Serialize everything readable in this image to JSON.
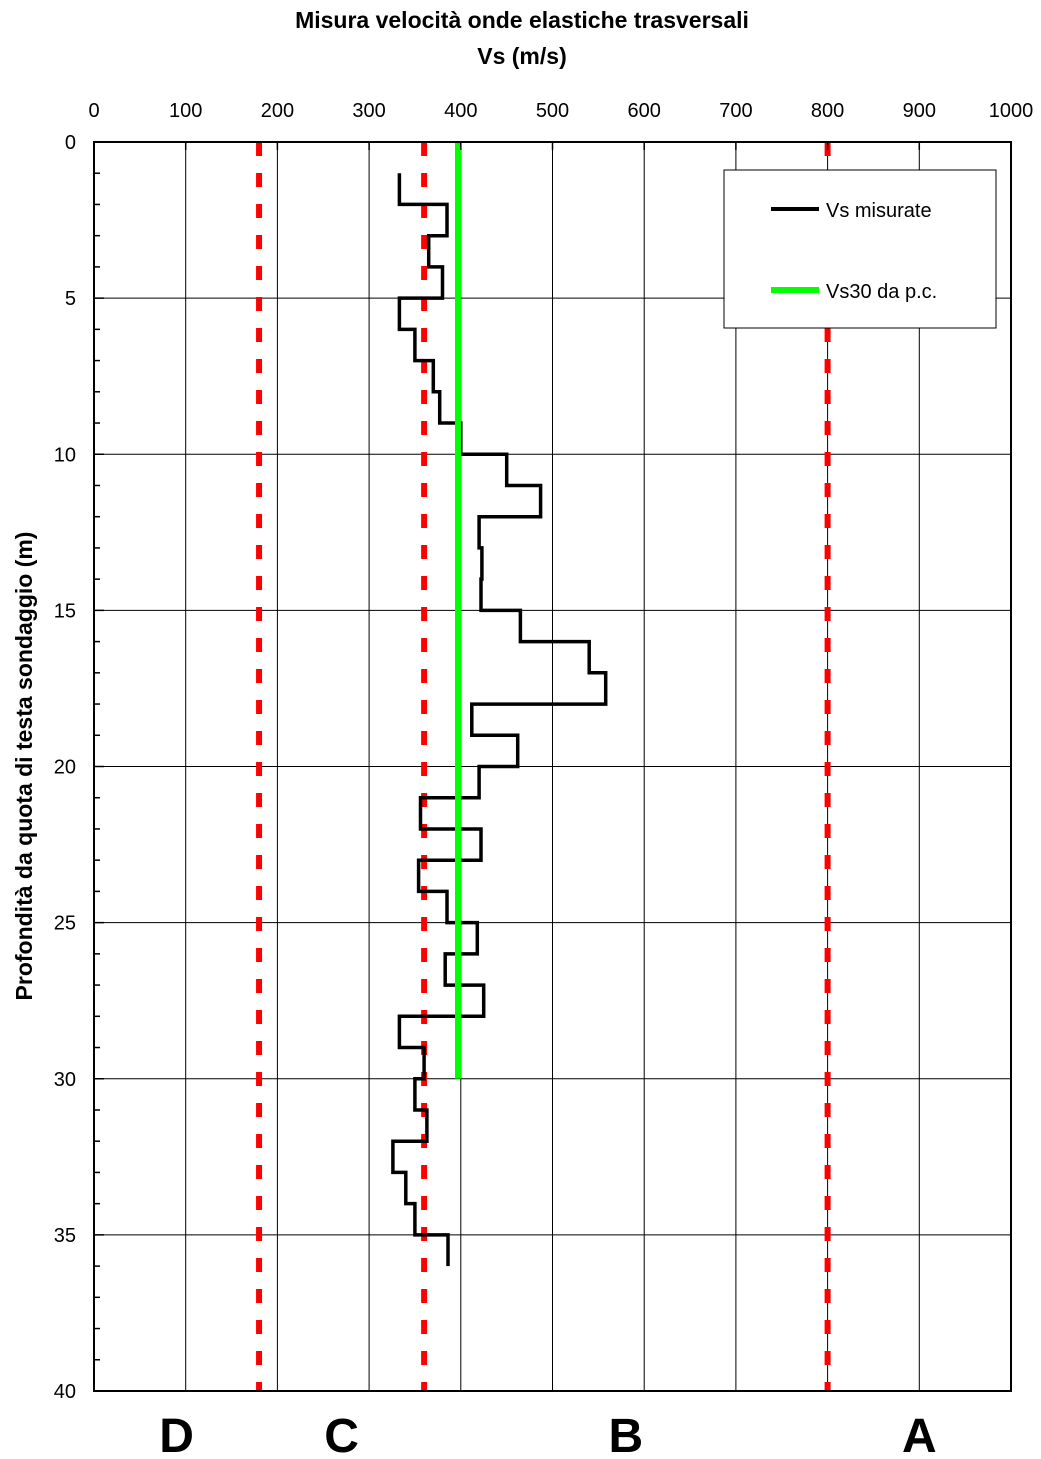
{
  "chart_data": {
    "type": "line",
    "title": "Misura velocità onde elastiche trasversali",
    "subtitle": "Vs (m/s)",
    "xlabel": "Vs (m/s)",
    "ylabel": "Profondità da quota di testa sondaggio (m)",
    "xlim": [
      0,
      1000
    ],
    "ylim": [
      0,
      40
    ],
    "y_inverted": true,
    "x_axis_position": "top",
    "x_ticks": [
      0,
      100,
      200,
      300,
      400,
      500,
      600,
      700,
      800,
      900,
      1000
    ],
    "y_ticks": [
      0,
      5,
      10,
      15,
      20,
      25,
      30,
      35,
      40
    ],
    "grid": true,
    "legend_placement": "top-right",
    "series": [
      {
        "name": "Vs misurate",
        "color": "#000000",
        "style": "step",
        "points": [
          {
            "vs": 333,
            "depth": 1
          },
          {
            "vs": 333,
            "depth": 2
          },
          {
            "vs": 385,
            "depth": 2
          },
          {
            "vs": 385,
            "depth": 3
          },
          {
            "vs": 365,
            "depth": 3
          },
          {
            "vs": 365,
            "depth": 4
          },
          {
            "vs": 380,
            "depth": 4
          },
          {
            "vs": 380,
            "depth": 5
          },
          {
            "vs": 333,
            "depth": 5
          },
          {
            "vs": 333,
            "depth": 6
          },
          {
            "vs": 350,
            "depth": 6
          },
          {
            "vs": 350,
            "depth": 7
          },
          {
            "vs": 370,
            "depth": 7
          },
          {
            "vs": 370,
            "depth": 8
          },
          {
            "vs": 377,
            "depth": 8
          },
          {
            "vs": 377,
            "depth": 9
          },
          {
            "vs": 400,
            "depth": 9
          },
          {
            "vs": 400,
            "depth": 10
          },
          {
            "vs": 450,
            "depth": 10
          },
          {
            "vs": 450,
            "depth": 11
          },
          {
            "vs": 487,
            "depth": 11
          },
          {
            "vs": 487,
            "depth": 12
          },
          {
            "vs": 420,
            "depth": 12
          },
          {
            "vs": 420,
            "depth": 13
          },
          {
            "vs": 423,
            "depth": 13
          },
          {
            "vs": 423,
            "depth": 14
          },
          {
            "vs": 422,
            "depth": 14
          },
          {
            "vs": 422,
            "depth": 15
          },
          {
            "vs": 465,
            "depth": 15
          },
          {
            "vs": 465,
            "depth": 16
          },
          {
            "vs": 540,
            "depth": 16
          },
          {
            "vs": 540,
            "depth": 17
          },
          {
            "vs": 558,
            "depth": 17
          },
          {
            "vs": 558,
            "depth": 18
          },
          {
            "vs": 412,
            "depth": 18
          },
          {
            "vs": 412,
            "depth": 19
          },
          {
            "vs": 462,
            "depth": 19
          },
          {
            "vs": 462,
            "depth": 20
          },
          {
            "vs": 420,
            "depth": 20
          },
          {
            "vs": 420,
            "depth": 21
          },
          {
            "vs": 356,
            "depth": 21
          },
          {
            "vs": 356,
            "depth": 22
          },
          {
            "vs": 422,
            "depth": 22
          },
          {
            "vs": 422,
            "depth": 23
          },
          {
            "vs": 354,
            "depth": 23
          },
          {
            "vs": 354,
            "depth": 24
          },
          {
            "vs": 385,
            "depth": 24
          },
          {
            "vs": 385,
            "depth": 25
          },
          {
            "vs": 418,
            "depth": 25
          },
          {
            "vs": 418,
            "depth": 26
          },
          {
            "vs": 383,
            "depth": 26
          },
          {
            "vs": 383,
            "depth": 27
          },
          {
            "vs": 425,
            "depth": 27
          },
          {
            "vs": 425,
            "depth": 28
          },
          {
            "vs": 333,
            "depth": 28
          },
          {
            "vs": 333,
            "depth": 29
          },
          {
            "vs": 360,
            "depth": 29
          },
          {
            "vs": 360,
            "depth": 30
          },
          {
            "vs": 350,
            "depth": 30
          },
          {
            "vs": 350,
            "depth": 31
          },
          {
            "vs": 363,
            "depth": 31
          },
          {
            "vs": 363,
            "depth": 32
          },
          {
            "vs": 326,
            "depth": 32
          },
          {
            "vs": 326,
            "depth": 33
          },
          {
            "vs": 340,
            "depth": 33
          },
          {
            "vs": 340,
            "depth": 34
          },
          {
            "vs": 350,
            "depth": 34
          },
          {
            "vs": 350,
            "depth": 35
          },
          {
            "vs": 386,
            "depth": 35
          },
          {
            "vs": 386,
            "depth": 36
          }
        ]
      },
      {
        "name": "Vs30 da p.c.",
        "color": "#00ff00",
        "style": "line",
        "points": [
          {
            "vs": 397,
            "depth": 0
          },
          {
            "vs": 397,
            "depth": 30
          }
        ]
      }
    ],
    "class_boundaries": {
      "color": "#ff0000",
      "style": "dashed",
      "values": [
        180,
        360,
        800
      ]
    },
    "soil_classes": [
      {
        "label": "D",
        "range": [
          0,
          180
        ]
      },
      {
        "label": "C",
        "range": [
          180,
          360
        ]
      },
      {
        "label": "B",
        "range": [
          360,
          800
        ]
      },
      {
        "label": "A",
        "range": [
          800,
          1000
        ]
      }
    ]
  }
}
